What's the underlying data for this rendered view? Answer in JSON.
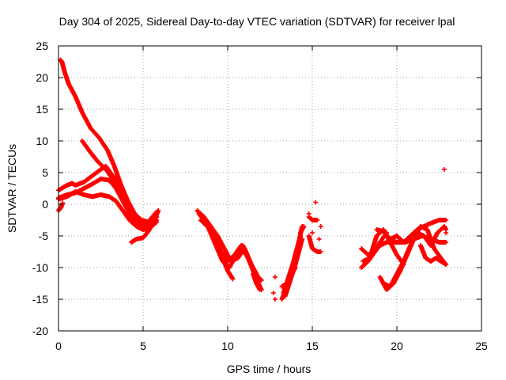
{
  "chart_data": {
    "type": "scatter",
    "title": "Day 304 of 2025, Sidereal Day-to-day VTEC variation (SDTVAR) for receiver lpal",
    "xlabel": "GPS time / hours",
    "ylabel": "SDTVAR / TECUs",
    "xlim": [
      0,
      25
    ],
    "ylim": [
      -20,
      25
    ],
    "xticks": [
      0,
      5,
      10,
      15,
      20,
      25
    ],
    "yticks": [
      -20,
      -15,
      -10,
      -5,
      0,
      5,
      10,
      15,
      20,
      25
    ],
    "grid": true,
    "marker": "+",
    "color": "#ff0000",
    "tracks": [
      [
        [
          0.1,
          22.8
        ],
        [
          0.2,
          22.5
        ],
        [
          0.35,
          21.0
        ],
        [
          0.6,
          19.0
        ],
        [
          1.0,
          17.0
        ],
        [
          1.4,
          14.5
        ],
        [
          1.9,
          12.0
        ],
        [
          2.4,
          10.5
        ],
        [
          2.9,
          8.5
        ],
        [
          3.3,
          6.0
        ],
        [
          3.7,
          3.0
        ],
        [
          4.1,
          0.5
        ],
        [
          4.5,
          -1.5
        ],
        [
          4.9,
          -2.5
        ],
        [
          5.3,
          -2.8
        ],
        [
          5.8,
          -1.2
        ]
      ],
      [
        [
          1.4,
          10.0
        ],
        [
          1.8,
          8.5
        ],
        [
          2.3,
          6.8
        ],
        [
          2.8,
          5.5
        ],
        [
          3.2,
          4.0
        ],
        [
          3.6,
          2.5
        ],
        [
          4.0,
          0.5
        ],
        [
          4.4,
          -1.5
        ],
        [
          4.8,
          -3.0
        ],
        [
          5.3,
          -3.5
        ],
        [
          5.8,
          -2.0
        ]
      ],
      [
        [
          0.0,
          2.2
        ],
        [
          0.5,
          3.0
        ],
        [
          0.8,
          3.3
        ],
        [
          1.0,
          3.0
        ],
        [
          1.5,
          3.5
        ],
        [
          2.0,
          4.5
        ],
        [
          2.5,
          5.5
        ],
        [
          2.8,
          6.0
        ],
        [
          3.2,
          4.5
        ],
        [
          3.6,
          3.0
        ],
        [
          4.0,
          0.5
        ],
        [
          4.4,
          -2.0
        ],
        [
          4.8,
          -3.5
        ],
        [
          5.3,
          -4.0
        ],
        [
          5.8,
          -2.0
        ]
      ],
      [
        [
          0.0,
          1.0
        ],
        [
          0.5,
          1.5
        ],
        [
          1.0,
          1.8
        ],
        [
          1.5,
          2.5
        ],
        [
          2.0,
          3.2
        ],
        [
          2.5,
          4.0
        ],
        [
          3.0,
          3.8
        ],
        [
          3.4,
          2.5
        ],
        [
          3.8,
          0.5
        ],
        [
          4.2,
          -1.5
        ],
        [
          4.6,
          -3.0
        ],
        [
          5.0,
          -4.0
        ],
        [
          5.4,
          -3.8
        ],
        [
          5.8,
          -2.5
        ]
      ],
      [
        [
          0.0,
          0.8
        ],
        [
          0.5,
          1.2
        ],
        [
          1.0,
          2.0
        ],
        [
          1.5,
          1.5
        ],
        [
          2.0,
          1.2
        ],
        [
          2.5,
          1.5
        ],
        [
          3.0,
          1.2
        ],
        [
          3.4,
          0.5
        ],
        [
          3.8,
          -1.0
        ],
        [
          4.2,
          -2.5
        ],
        [
          4.6,
          -3.5
        ],
        [
          5.0,
          -4.0
        ],
        [
          5.5,
          -3.5
        ],
        [
          5.8,
          -2.8
        ]
      ],
      [
        [
          4.3,
          -6.0
        ],
        [
          4.6,
          -5.5
        ],
        [
          5.0,
          -5.3
        ],
        [
          5.3,
          -4.3
        ],
        [
          5.6,
          -3.0
        ],
        [
          5.9,
          -1.0
        ]
      ],
      [
        [
          0.0,
          -1.0
        ],
        [
          0.15,
          -0.5
        ],
        [
          0.25,
          0.2
        ]
      ],
      [
        [
          8.2,
          -1.0
        ],
        [
          8.6,
          -2.0
        ],
        [
          9.0,
          -3.5
        ],
        [
          9.4,
          -5.0
        ],
        [
          9.8,
          -7.0
        ],
        [
          10.2,
          -9.0
        ],
        [
          10.6,
          -8.5
        ],
        [
          11.0,
          -7.0
        ],
        [
          11.4,
          -9.5
        ],
        [
          11.8,
          -11.5
        ],
        [
          12.0,
          -12.0
        ]
      ],
      [
        [
          8.4,
          -2.5
        ],
        [
          8.8,
          -3.5
        ],
        [
          9.2,
          -5.0
        ],
        [
          9.6,
          -7.5
        ],
        [
          10.0,
          -9.0
        ],
        [
          10.4,
          -8.0
        ],
        [
          10.8,
          -6.5
        ],
        [
          11.2,
          -8.5
        ],
        [
          11.6,
          -11.0
        ],
        [
          11.9,
          -13.0
        ]
      ],
      [
        [
          8.3,
          -1.5
        ],
        [
          8.7,
          -3.0
        ],
        [
          9.1,
          -4.5
        ],
        [
          9.4,
          -6.0
        ],
        [
          9.7,
          -8.5
        ],
        [
          10.0,
          -10.5
        ],
        [
          10.3,
          -11.8
        ]
      ],
      [
        [
          8.5,
          -2.0
        ],
        [
          8.9,
          -4.0
        ],
        [
          9.3,
          -6.5
        ],
        [
          9.7,
          -9.0
        ],
        [
          10.1,
          -10.0
        ],
        [
          10.5,
          -8.0
        ],
        [
          10.9,
          -6.5
        ],
        [
          11.3,
          -9.0
        ],
        [
          11.7,
          -12.0
        ],
        [
          12.0,
          -13.5
        ]
      ],
      [
        [
          11.5,
          -11.0
        ],
        [
          11.7,
          -12.5
        ],
        [
          11.9,
          -13.5
        ]
      ],
      [
        [
          12.8,
          -11.5
        ]
      ],
      [
        [
          12.7,
          -14.0
        ]
      ],
      [
        [
          12.8,
          -15.0
        ]
      ],
      [
        [
          13.2,
          -15.0
        ],
        [
          13.5,
          -13.0
        ],
        [
          13.8,
          -10.0
        ],
        [
          14.0,
          -8.0
        ],
        [
          14.2,
          -6.0
        ],
        [
          14.4,
          -3.5
        ]
      ],
      [
        [
          13.3,
          -14.0
        ],
        [
          13.6,
          -11.5
        ],
        [
          13.9,
          -9.0
        ],
        [
          14.1,
          -7.0
        ],
        [
          14.3,
          -5.0
        ]
      ],
      [
        [
          13.4,
          -14.5
        ],
        [
          13.7,
          -12.0
        ],
        [
          14.0,
          -9.5
        ],
        [
          14.2,
          -7.5
        ],
        [
          14.4,
          -5.5
        ]
      ],
      [
        [
          13.2,
          -13.0
        ],
        [
          13.5,
          -12.5
        ],
        [
          13.8,
          -11.0
        ],
        [
          14.0,
          -10.0
        ]
      ],
      [
        [
          14.3,
          -4.5
        ],
        [
          14.5,
          -3.5
        ]
      ],
      [
        [
          14.8,
          -2.0
        ],
        [
          15.0,
          -2.5
        ],
        [
          15.3,
          -2.5
        ]
      ],
      [
        [
          14.8,
          -5.0
        ],
        [
          15.0,
          -7.0
        ],
        [
          15.3,
          -7.5
        ],
        [
          15.5,
          -7.5
        ]
      ],
      [
        [
          14.8,
          -1.5
        ]
      ],
      [
        [
          15.2,
          0.3
        ]
      ],
      [
        [
          15.0,
          -4.5
        ]
      ],
      [
        [
          15.4,
          -5.5
        ]
      ],
      [
        [
          15.5,
          -3.5
        ]
      ],
      [
        [
          17.9,
          -10.0
        ],
        [
          18.3,
          -9.0
        ],
        [
          18.7,
          -7.5
        ],
        [
          19.0,
          -6.0
        ],
        [
          19.4,
          -4.5
        ]
      ],
      [
        [
          17.9,
          -7.0
        ],
        [
          18.3,
          -8.0
        ],
        [
          18.7,
          -7.5
        ],
        [
          19.0,
          -6.5
        ],
        [
          19.4,
          -6.0
        ],
        [
          19.8,
          -5.5
        ]
      ],
      [
        [
          18.0,
          -9.0
        ],
        [
          18.4,
          -8.5
        ],
        [
          18.8,
          -5.0
        ],
        [
          19.2,
          -4.0
        ],
        [
          19.6,
          -6.0
        ],
        [
          20.0,
          -8.0
        ],
        [
          20.4,
          -9.5
        ]
      ],
      [
        [
          18.8,
          -4.0
        ],
        [
          19.2,
          -4.3
        ],
        [
          19.6,
          -5.5
        ],
        [
          20.0,
          -5.0
        ],
        [
          20.4,
          -6.0
        ],
        [
          20.8,
          -5.0
        ],
        [
          21.2,
          -4.0
        ],
        [
          21.6,
          -3.5
        ],
        [
          22.0,
          -3.0
        ],
        [
          22.5,
          -2.5
        ],
        [
          22.9,
          -2.5
        ]
      ],
      [
        [
          19.5,
          -6.0
        ],
        [
          20.0,
          -6.0
        ],
        [
          20.5,
          -6.0
        ],
        [
          21.0,
          -5.5
        ],
        [
          21.5,
          -5.0
        ],
        [
          22.0,
          -5.5
        ],
        [
          22.5,
          -6.0
        ],
        [
          22.9,
          -6.0
        ]
      ],
      [
        [
          19.0,
          -11.5
        ],
        [
          19.4,
          -13.5
        ],
        [
          19.8,
          -12.5
        ],
        [
          20.2,
          -10.5
        ],
        [
          20.6,
          -8.0
        ],
        [
          21.0,
          -5.5
        ],
        [
          21.4,
          -3.5
        ],
        [
          21.8,
          -4.0
        ],
        [
          22.2,
          -7.0
        ],
        [
          22.6,
          -8.5
        ],
        [
          22.9,
          -9.5
        ]
      ],
      [
        [
          19.2,
          -12.5
        ],
        [
          19.6,
          -13.0
        ],
        [
          20.0,
          -11.0
        ],
        [
          20.4,
          -9.0
        ],
        [
          20.8,
          -6.5
        ],
        [
          21.2,
          -4.5
        ],
        [
          21.6,
          -5.0
        ],
        [
          22.0,
          -6.5
        ],
        [
          22.4,
          -4.5
        ],
        [
          22.8,
          -3.5
        ],
        [
          22.9,
          -4.0
        ]
      ],
      [
        [
          21.4,
          -6.5
        ],
        [
          21.7,
          -8.5
        ],
        [
          22.0,
          -9.0
        ],
        [
          22.3,
          -8.5
        ],
        [
          22.6,
          -9.0
        ],
        [
          22.9,
          -9.5
        ]
      ],
      [
        [
          22.8,
          5.5
        ]
      ],
      [
        [
          22.9,
          -4.5
        ]
      ]
    ]
  }
}
